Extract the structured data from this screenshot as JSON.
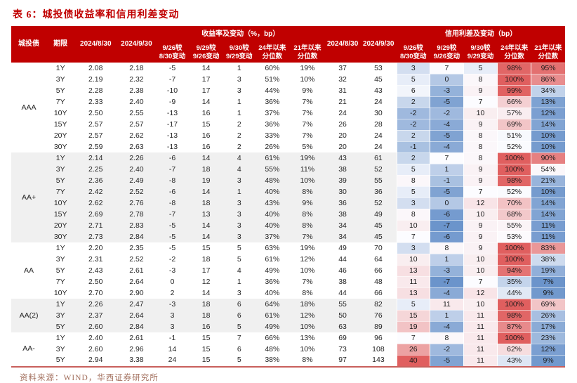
{
  "title": "表 6：城投债收益率和信用利差变动",
  "source_note": "资料来源：WIND，华西证券研究所",
  "colors": {
    "header_bg": "#c00000",
    "title": "#c00000",
    "stripe": "#f0f0f0",
    "heat_low": "#6b94cb",
    "heat_mid": "#fcfcff",
    "heat_high": "#e05f5f",
    "footer_text": "#a3715f",
    "bottom_line": "#c9605c"
  },
  "header": {
    "rating": "城投债",
    "tenor": "期限",
    "date_prev": "2024/8/30",
    "date_curr": "2024/9/30",
    "yield_group": "收益率及变动（%，bp）",
    "spread_group": "信用利差及变动（bp）",
    "subs": [
      {
        "l1": "9/26较",
        "l2": "8/30变动"
      },
      {
        "l1": "9/29较",
        "l2": "9/26变动"
      },
      {
        "l1": "9/30较",
        "l2": "9/29变动"
      },
      {
        "l1": "24年以来",
        "l2": "分位数"
      },
      {
        "l1": "21年以来",
        "l2": "分位数"
      }
    ]
  },
  "groups": [
    {
      "rating": "AAA",
      "rows": [
        [
          "1Y",
          "2.08",
          "2.18",
          "-5",
          "14",
          "1",
          "60%",
          "19%",
          "37",
          "53",
          "3",
          "7",
          "5",
          "98%",
          "95%"
        ],
        [
          "3Y",
          "2.19",
          "2.32",
          "-7",
          "17",
          "3",
          "51%",
          "10%",
          "32",
          "45",
          "5",
          "0",
          "8",
          "100%",
          "86%"
        ],
        [
          "5Y",
          "2.28",
          "2.38",
          "-10",
          "17",
          "3",
          "44%",
          "9%",
          "31",
          "43",
          "6",
          "-3",
          "9",
          "99%",
          "34%"
        ],
        [
          "7Y",
          "2.33",
          "2.40",
          "-9",
          "14",
          "1",
          "36%",
          "7%",
          "21",
          "24",
          "2",
          "-5",
          "7",
          "66%",
          "13%"
        ],
        [
          "10Y",
          "2.50",
          "2.55",
          "-13",
          "16",
          "1",
          "37%",
          "7%",
          "24",
          "30",
          "-2",
          "-2",
          "10",
          "57%",
          "12%"
        ],
        [
          "15Y",
          "2.57",
          "2.57",
          "-17",
          "15",
          "2",
          "36%",
          "7%",
          "26",
          "28",
          "-2",
          "-4",
          "9",
          "69%",
          "14%"
        ],
        [
          "20Y",
          "2.57",
          "2.62",
          "-13",
          "16",
          "2",
          "33%",
          "7%",
          "20",
          "24",
          "2",
          "-5",
          "8",
          "51%",
          "10%"
        ],
        [
          "30Y",
          "2.59",
          "2.63",
          "-13",
          "16",
          "2",
          "26%",
          "5%",
          "20",
          "24",
          "-1",
          "-4",
          "8",
          "52%",
          "10%"
        ]
      ]
    },
    {
      "rating": "AA+",
      "rows": [
        [
          "1Y",
          "2.14",
          "2.26",
          "-6",
          "14",
          "4",
          "61%",
          "19%",
          "43",
          "61",
          "2",
          "7",
          "8",
          "100%",
          "90%"
        ],
        [
          "3Y",
          "2.25",
          "2.40",
          "-7",
          "18",
          "4",
          "55%",
          "11%",
          "38",
          "52",
          "5",
          "1",
          "9",
          "100%",
          "54%"
        ],
        [
          "5Y",
          "2.36",
          "2.49",
          "-8",
          "19",
          "3",
          "48%",
          "10%",
          "39",
          "55",
          "8",
          "-1",
          "9",
          "98%",
          "21%"
        ],
        [
          "7Y",
          "2.42",
          "2.52",
          "-6",
          "14",
          "1",
          "40%",
          "8%",
          "30",
          "36",
          "5",
          "-5",
          "7",
          "52%",
          "10%"
        ],
        [
          "10Y",
          "2.62",
          "2.76",
          "-8",
          "18",
          "3",
          "43%",
          "9%",
          "36",
          "52",
          "3",
          "0",
          "12",
          "70%",
          "14%"
        ],
        [
          "15Y",
          "2.69",
          "2.78",
          "-7",
          "13",
          "3",
          "40%",
          "8%",
          "38",
          "49",
          "8",
          "-6",
          "10",
          "68%",
          "14%"
        ],
        [
          "20Y",
          "2.71",
          "2.83",
          "-5",
          "14",
          "3",
          "40%",
          "8%",
          "34",
          "45",
          "10",
          "-7",
          "9",
          "55%",
          "11%"
        ],
        [
          "30Y",
          "2.73",
          "2.84",
          "-5",
          "14",
          "3",
          "37%",
          "7%",
          "34",
          "45",
          "7",
          "-6",
          "9",
          "53%",
          "11%"
        ]
      ]
    },
    {
      "rating": "AA",
      "rows": [
        [
          "1Y",
          "2.20",
          "2.35",
          "-5",
          "15",
          "5",
          "63%",
          "19%",
          "49",
          "70",
          "3",
          "8",
          "9",
          "100%",
          "83%"
        ],
        [
          "3Y",
          "2.31",
          "2.52",
          "-2",
          "18",
          "5",
          "61%",
          "12%",
          "44",
          "64",
          "10",
          "1",
          "10",
          "100%",
          "38%"
        ],
        [
          "5Y",
          "2.43",
          "2.61",
          "-3",
          "17",
          "4",
          "49%",
          "10%",
          "46",
          "66",
          "13",
          "-3",
          "10",
          "94%",
          "19%"
        ],
        [
          "7Y",
          "2.50",
          "2.64",
          "0",
          "12",
          "1",
          "36%",
          "7%",
          "38",
          "48",
          "11",
          "-7",
          "7",
          "35%",
          "7%"
        ],
        [
          "10Y",
          "2.70",
          "2.90",
          "2",
          "14",
          "3",
          "40%",
          "8%",
          "44",
          "66",
          "13",
          "-4",
          "12",
          "44%",
          "9%"
        ]
      ]
    },
    {
      "rating": "AA(2)",
      "rows": [
        [
          "1Y",
          "2.26",
          "2.47",
          "-3",
          "18",
          "6",
          "64%",
          "18%",
          "55",
          "82",
          "5",
          "11",
          "10",
          "100%",
          "69%"
        ],
        [
          "3Y",
          "2.37",
          "2.64",
          "3",
          "18",
          "6",
          "61%",
          "12%",
          "50",
          "76",
          "15",
          "1",
          "11",
          "98%",
          "26%"
        ],
        [
          "5Y",
          "2.60",
          "2.84",
          "3",
          "16",
          "5",
          "49%",
          "10%",
          "63",
          "89",
          "19",
          "-4",
          "11",
          "87%",
          "17%"
        ]
      ]
    },
    {
      "rating": "AA-",
      "rows": [
        [
          "1Y",
          "2.40",
          "2.61",
          "-1",
          "15",
          "7",
          "66%",
          "13%",
          "69",
          "96",
          "7",
          "8",
          "11",
          "100%",
          "23%"
        ],
        [
          "3Y",
          "2.60",
          "2.96",
          "14",
          "15",
          "6",
          "48%",
          "10%",
          "73",
          "108",
          "26",
          "-2",
          "11",
          "62%",
          "12%"
        ],
        [
          "5Y",
          "2.94",
          "3.38",
          "24",
          "15",
          "5",
          "38%",
          "8%",
          "97",
          "143",
          "40",
          "-5",
          "11",
          "43%",
          "9%"
        ]
      ]
    }
  ]
}
